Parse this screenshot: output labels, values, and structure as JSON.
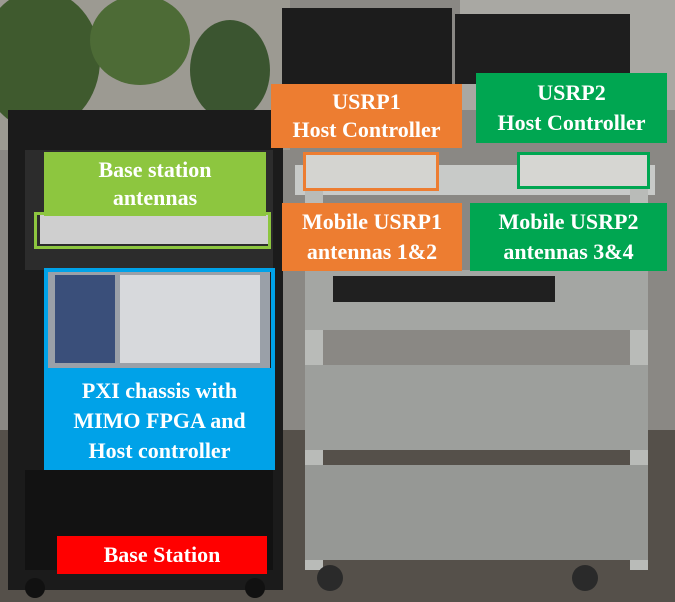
{
  "labels": {
    "base_station_antennas": {
      "line1": "Base station",
      "line2": "antennas"
    },
    "usrp1_host": {
      "line1": "USRP1",
      "line2": "Host Controller"
    },
    "usrp2_host": {
      "line1": "USRP2",
      "line2": "Host Controller"
    },
    "mobile_usrp1": {
      "line1": "Mobile USRP1",
      "line2": "antennas 1&2"
    },
    "mobile_usrp2": {
      "line1": "Mobile USRP2",
      "line2": "antennas 3&4"
    },
    "pxi_chassis": {
      "line1": "PXI chassis with",
      "line2": "MIMO FPGA and",
      "line3": "Host controller"
    },
    "base_station": {
      "text": "Base Station"
    }
  },
  "colors": {
    "green_light": "#8dc63f",
    "orange": "#ed7d31",
    "green_dark": "#00a651",
    "blue": "#00a2e8",
    "red": "#ff0000"
  }
}
